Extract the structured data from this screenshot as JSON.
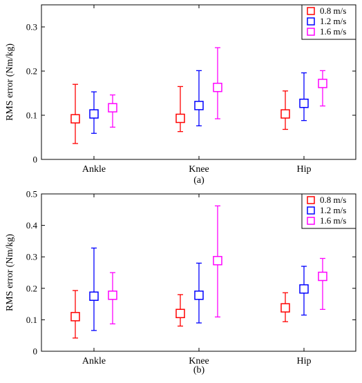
{
  "chart_data": [
    {
      "type": "scatter",
      "subtitle": "(a)",
      "ylabel": "RMS error (Nm/kg)",
      "xlabel": "",
      "categories": [
        "Ankle",
        "Knee",
        "Hip"
      ],
      "ylim": [
        0,
        0.35
      ],
      "yticks": [
        0,
        0.1,
        0.2,
        0.3
      ],
      "ytick_labels": [
        "0",
        "0.1",
        "0.2",
        "0.3"
      ],
      "grid": false,
      "legend_position": "top-right",
      "series": [
        {
          "name": "0.8 m/s",
          "color": "#ff0000",
          "means": [
            0.092,
            0.093,
            0.103
          ],
          "lower": [
            0.036,
            0.063,
            0.068
          ],
          "upper": [
            0.17,
            0.165,
            0.155
          ]
        },
        {
          "name": "1.2 m/s",
          "color": "#0000ff",
          "means": [
            0.103,
            0.122,
            0.127
          ],
          "lower": [
            0.059,
            0.076,
            0.088
          ],
          "upper": [
            0.153,
            0.201,
            0.196
          ]
        },
        {
          "name": "1.6 m/s",
          "color": "#ff00ff",
          "means": [
            0.117,
            0.163,
            0.172
          ],
          "lower": [
            0.073,
            0.092,
            0.121
          ],
          "upper": [
            0.146,
            0.253,
            0.201
          ]
        }
      ]
    },
    {
      "type": "scatter",
      "subtitle": "(b)",
      "ylabel": "RMS error (Nm/kg)",
      "xlabel": "",
      "categories": [
        "Ankle",
        "Knee",
        "Hip"
      ],
      "ylim": [
        0,
        0.5
      ],
      "yticks": [
        0,
        0.1,
        0.2,
        0.3,
        0.4,
        0.5
      ],
      "ytick_labels": [
        "0",
        "0.1",
        "0.2",
        "0.3",
        "0.4",
        "0.5"
      ],
      "grid": false,
      "legend_position": "top-right",
      "series": [
        {
          "name": "0.8 m/s",
          "color": "#ff0000",
          "means": [
            0.11,
            0.12,
            0.138
          ],
          "lower": [
            0.042,
            0.08,
            0.094
          ],
          "upper": [
            0.193,
            0.18,
            0.186
          ]
        },
        {
          "name": "1.2 m/s",
          "color": "#0000ff",
          "means": [
            0.175,
            0.178,
            0.198
          ],
          "lower": [
            0.066,
            0.09,
            0.115
          ],
          "upper": [
            0.328,
            0.28,
            0.27
          ]
        },
        {
          "name": "1.6 m/s",
          "color": "#ff00ff",
          "means": [
            0.178,
            0.288,
            0.238
          ],
          "lower": [
            0.087,
            0.109,
            0.133
          ],
          "upper": [
            0.25,
            0.462,
            0.295
          ]
        }
      ]
    }
  ]
}
